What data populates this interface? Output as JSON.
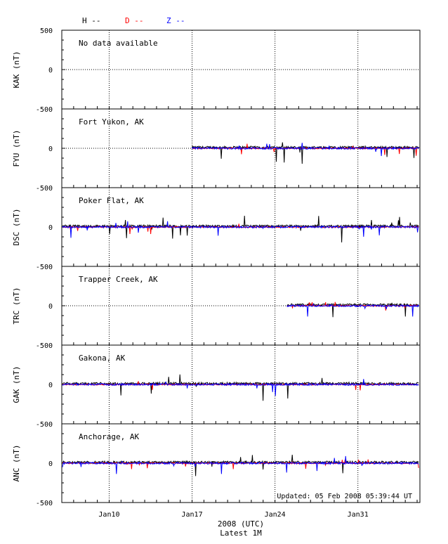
{
  "chart_data": {
    "type": "line",
    "xlabel": "2008 (UTC)",
    "subtitle": "Latest 1M",
    "updated": "Updated: 05 Feb 2008 05:39:44 UT",
    "x_range": [
      "2008-01-06",
      "2008-02-05"
    ],
    "x_ticks": [
      {
        "date": "2008-01-10",
        "label": "Jan10"
      },
      {
        "date": "2008-01-17",
        "label": "Jan17"
      },
      {
        "date": "2008-01-24",
        "label": "Jan24"
      },
      {
        "date": "2008-01-31",
        "label": "Jan31"
      }
    ],
    "y_range": [
      -500,
      500
    ],
    "y_ticks": [
      "500",
      "0",
      "-500"
    ],
    "grid": "dotted",
    "legend": [
      {
        "label": "H --",
        "color": "#000000"
      },
      {
        "label": "D --",
        "color": "#ff0000"
      },
      {
        "label": "Z --",
        "color": "#0000ff"
      }
    ],
    "panels": [
      {
        "ylabel": "KAK (nT)",
        "station": "No data available",
        "data_start": null
      },
      {
        "ylabel": "FYU (nT)",
        "station": "Fort Yukon, AK",
        "data_start": "2008-01-17"
      },
      {
        "ylabel": "DSC (nT)",
        "station": "Poker Flat, AK",
        "data_start": "2008-01-06"
      },
      {
        "ylabel": "TRC (nT)",
        "station": "Trapper Creek, AK",
        "data_start": "2008-01-25"
      },
      {
        "ylabel": "GAK (nT)",
        "station": "Gakona, AK",
        "data_start": "2008-01-06"
      },
      {
        "ylabel": "ANC (nT)",
        "station": "Anchorage, AK",
        "data_start": "2008-01-06"
      }
    ]
  }
}
